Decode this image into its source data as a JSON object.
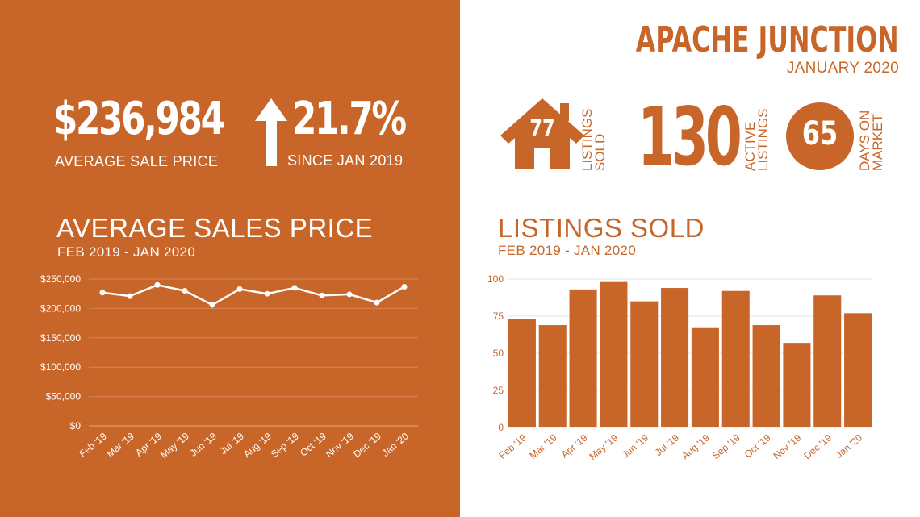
{
  "left_panel": {
    "avg_price_value": "$236,984",
    "avg_price_label": "AVERAGE  SALE PRICE",
    "change_value": "21.7%",
    "change_label": "SINCE JAN 2019"
  },
  "right_panel": {
    "city": "APACHE JUNCTION",
    "date": "JANUARY 2020",
    "listings_sold_value": "77",
    "listings_sold_label_1": "LISTINGS",
    "listings_sold_label_2": "SOLD",
    "active_value": "130",
    "active_label_1": "ACTIVE",
    "active_label_2": "LISTINGS",
    "dom_value": "65",
    "dom_label_1": "DAYS ON",
    "dom_label_2": "MARKET"
  },
  "colors": {
    "accent": "#c8662a",
    "background": "#ffffff",
    "on_accent": "#ffffff"
  },
  "icons": [
    "up-arrow-icon",
    "house-icon",
    "circle-badge-icon"
  ],
  "chart_data": [
    {
      "type": "line",
      "title": "AVERAGE SALES PRICE",
      "subtitle": "FEB 2019 - JAN 2020",
      "categories": [
        "Feb '19",
        "Mar '19",
        "Apr '19",
        "May '19",
        "Jun '19",
        "Jul '19",
        "Aug '19",
        "Sep '19",
        "Oct '19",
        "Nov '19",
        "Dec '19",
        "Jan '20"
      ],
      "values": [
        227000,
        221000,
        240000,
        230000,
        206000,
        233000,
        225000,
        235000,
        222000,
        224000,
        210000,
        237000
      ],
      "yticks": [
        "$0",
        "$50,000",
        "$100,000",
        "$150,000",
        "$200,000",
        "$250,000"
      ],
      "ylim": [
        0,
        250000
      ],
      "grid": true,
      "legend": "none"
    },
    {
      "type": "bar",
      "title": "LISTINGS SOLD",
      "subtitle": "FEB 2019 - JAN 2020",
      "categories": [
        "Feb '19",
        "Mar '19",
        "Apr '19",
        "May '19",
        "Jun '19",
        "Jul '19",
        "Aug '19",
        "Sep '19",
        "Oct '19",
        "Nov '19",
        "Dec '19",
        "Jan '20"
      ],
      "values": [
        73,
        69,
        93,
        98,
        85,
        94,
        67,
        92,
        69,
        57,
        89,
        77
      ],
      "yticks": [
        "0",
        "25",
        "50",
        "75",
        "100"
      ],
      "ylim": [
        0,
        100
      ],
      "grid": true,
      "legend": "none"
    }
  ]
}
